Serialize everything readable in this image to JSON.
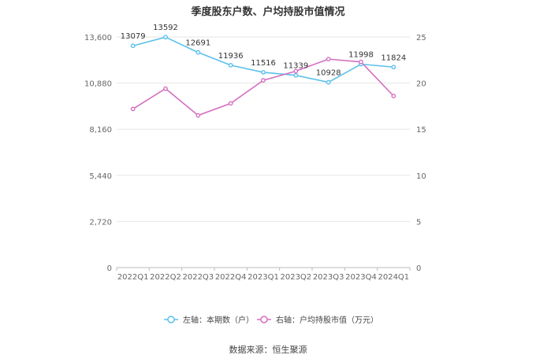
{
  "title": "季度股东户数、户均持股市值情况",
  "source": "数据来源：恒生聚源",
  "chart_data": {
    "type": "line",
    "title": "季度股东户数、户均持股市值情况",
    "categories": [
      "2022Q1",
      "2022Q2",
      "2022Q3",
      "2022Q4",
      "2023Q1",
      "2023Q2",
      "2023Q3",
      "2023Q4",
      "2024Q1"
    ],
    "left_axis": {
      "ylim": [
        0,
        13600
      ],
      "ticks": [
        "0",
        "2,720",
        "5,440",
        "8,160",
        "10,880",
        "13,600"
      ]
    },
    "right_axis": {
      "ylim": [
        0,
        25
      ],
      "ticks": [
        "0",
        "5",
        "10",
        "15",
        "20",
        "25"
      ]
    },
    "grid": true,
    "legend_position": "bottom",
    "series": [
      {
        "name": "左轴：本期数（户）",
        "axis": "left",
        "color": "#5bc0eb",
        "values": [
          13079,
          13592,
          12691,
          11936,
          11516,
          11339,
          10928,
          11998,
          11824
        ],
        "labels": [
          "13079",
          "13592",
          "12691",
          "11936",
          "11516",
          "11339",
          "10928",
          "11998",
          "11824"
        ]
      },
      {
        "name": "右轴：户均持股市值（万元）",
        "axis": "right",
        "color": "#d46fc0",
        "values": [
          17.2,
          19.4,
          16.5,
          17.8,
          20.3,
          21.3,
          22.6,
          22.3,
          18.6
        ]
      }
    ]
  }
}
